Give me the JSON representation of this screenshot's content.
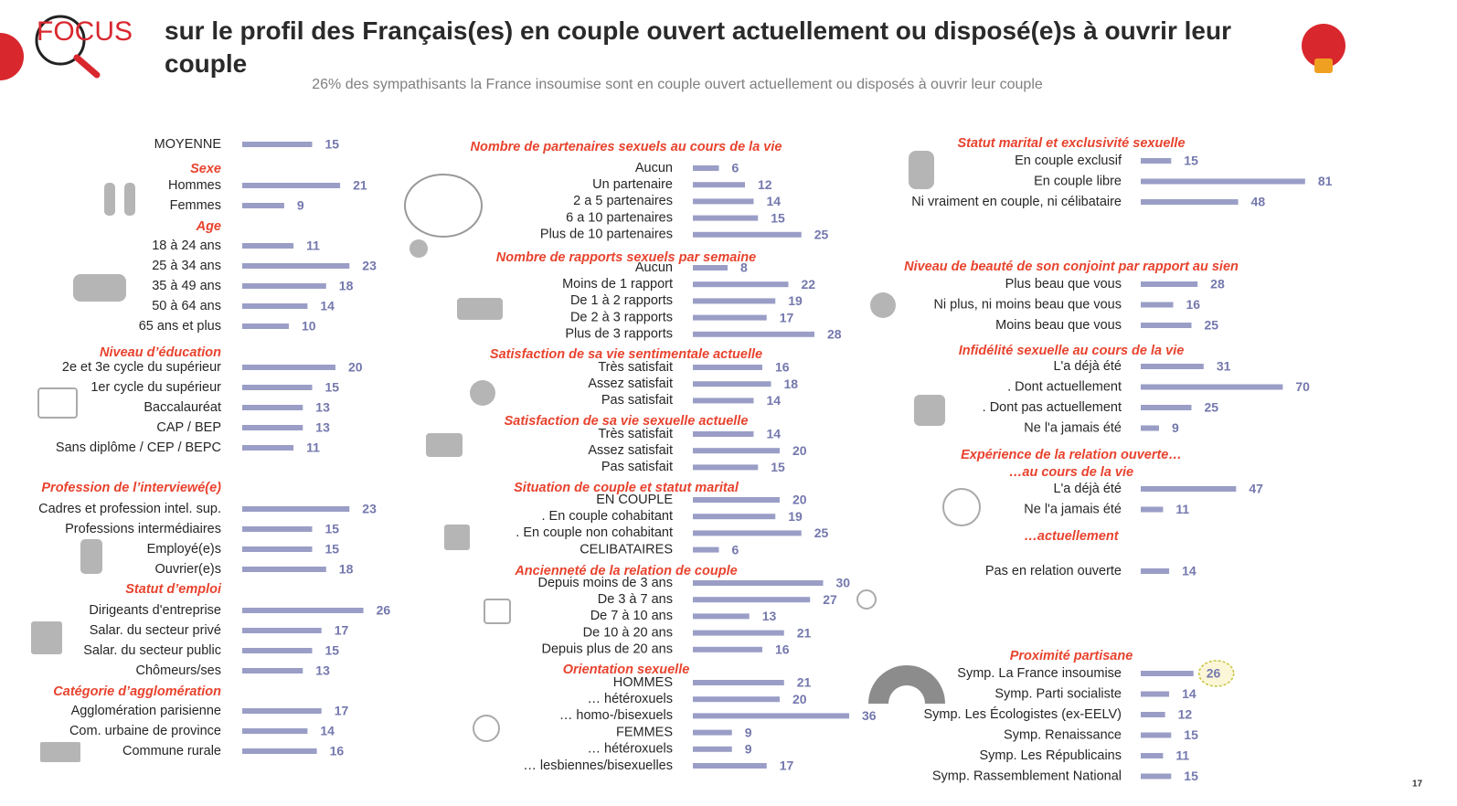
{
  "header": {
    "logo_text": "FOCUS",
    "title": "sur le profil des Français(es) en couple ouvert actuellement ou disposé(e)s à ouvrir leur couple",
    "subtitle": "26% des sympathisants la France insoumise sont en couple ouvert actuellement ou disposés à ouvrir leur couple",
    "page_number": "17"
  },
  "columns": [
    {
      "sections": [
        {
          "rows": [
            {
              "label": "MOYENNE",
              "value": 15
            }
          ]
        },
        {
          "heading": "Sexe",
          "rows": [
            {
              "label": "Hommes",
              "value": 21
            },
            {
              "label": "Femmes",
              "value": 9
            }
          ]
        },
        {
          "heading": "Age",
          "rows": [
            {
              "label": "18 à 24 ans",
              "value": 11
            },
            {
              "label": "25 à 34 ans",
              "value": 23
            },
            {
              "label": "35 à 49 ans",
              "value": 18
            },
            {
              "label": "50 à 64 ans",
              "value": 14
            },
            {
              "label": "65 ans et plus",
              "value": 10
            }
          ]
        },
        {
          "heading": "Niveau d’éducation",
          "rows": [
            {
              "label": "2e et 3e cycle du supérieur",
              "value": 20
            },
            {
              "label": "1er cycle du supérieur",
              "value": 15
            },
            {
              "label": "Baccalauréat",
              "value": 13
            },
            {
              "label": "CAP / BEP",
              "value": 13
            },
            {
              "label": "Sans diplôme / CEP / BEPC",
              "value": 11
            }
          ]
        },
        {
          "heading": "Profession de l’interviewé(e)",
          "rows": [
            {
              "label": "Cadres et profession intel. sup.",
              "value": 23
            },
            {
              "label": "Professions intermédiaires",
              "value": 15
            },
            {
              "label": "Employé(e)s",
              "value": 15
            },
            {
              "label": "Ouvrier(e)s",
              "value": 18
            }
          ]
        },
        {
          "heading": "Statut d’emploi",
          "rows": [
            {
              "label": "Dirigeants d'entreprise",
              "value": 26
            },
            {
              "label": "Salar. du secteur privé",
              "value": 17
            },
            {
              "label": "Salar. du secteur public",
              "value": 15
            },
            {
              "label": "Chômeurs/ses",
              "value": 13
            }
          ]
        },
        {
          "heading": "Catégorie d’agglomération",
          "rows": [
            {
              "label": "Agglomération parisienne",
              "value": 17
            },
            {
              "label": "Com. urbaine de province",
              "value": 14
            },
            {
              "label": "Commune rurale",
              "value": 16
            }
          ]
        }
      ]
    },
    {
      "sections": [
        {
          "heading": "Nombre de partenaires sexuels au cours de la vie",
          "rows": [
            {
              "label": "Aucun",
              "value": 6
            },
            {
              "label": "Un partenaire",
              "value": 12
            },
            {
              "label": "2 a 5 partenaires",
              "value": 14
            },
            {
              "label": "6 a 10 partenaires",
              "value": 15
            },
            {
              "label": "Plus de 10 partenaires",
              "value": 25
            }
          ]
        },
        {
          "heading": "Nombre de rapports sexuels par semaine",
          "rows": [
            {
              "label": "Aucun",
              "value": 8
            },
            {
              "label": "Moins de 1 rapport",
              "value": 22
            },
            {
              "label": "De 1 à 2 rapports",
              "value": 19
            },
            {
              "label": "De 2 à 3 rapports",
              "value": 17
            },
            {
              "label": "Plus de 3 rapports",
              "value": 28
            }
          ]
        },
        {
          "heading": "Satisfaction de sa vie sentimentale actuelle",
          "rows": [
            {
              "label": "Très satisfait",
              "value": 16
            },
            {
              "label": "Assez satisfait",
              "value": 18
            },
            {
              "label": "Pas satisfait",
              "value": 14
            }
          ]
        },
        {
          "heading": "Satisfaction de sa vie sexuelle actuelle",
          "rows": [
            {
              "label": "Très satisfait",
              "value": 14
            },
            {
              "label": "Assez satisfait",
              "value": 20
            },
            {
              "label": "Pas satisfait",
              "value": 15
            }
          ]
        },
        {
          "heading": "Situation de couple et statut marital",
          "rows": [
            {
              "label": "EN COUPLE",
              "value": 20
            },
            {
              "label": ". En couple cohabitant",
              "value": 19
            },
            {
              "label": ". En couple non cohabitant",
              "value": 25
            },
            {
              "label": "CELIBATAIRES",
              "value": 6
            }
          ]
        },
        {
          "heading": "Ancienneté de la relation de couple",
          "rows": [
            {
              "label": "Depuis moins de 3 ans",
              "value": 30
            },
            {
              "label": "De 3 à 7 ans",
              "value": 27
            },
            {
              "label": "De 7 à 10 ans",
              "value": 13
            },
            {
              "label": "De 10 à 20 ans",
              "value": 21
            },
            {
              "label": "Depuis plus de 20 ans",
              "value": 16
            }
          ]
        },
        {
          "heading": "Orientation sexuelle",
          "rows": [
            {
              "label": "HOMMES",
              "value": 21
            },
            {
              "label": "… hétéroxuels",
              "value": 20
            },
            {
              "label": "… homo-/bisexuels",
              "value": 36
            },
            {
              "label": "FEMMES",
              "value": 9
            },
            {
              "label": "… hétéroxuels",
              "value": 9
            },
            {
              "label": "… lesbiennes/bisexuelles",
              "value": 17
            }
          ]
        }
      ]
    },
    {
      "sections": [
        {
          "heading": "Statut marital et exclusivité sexuelle",
          "rows": [
            {
              "label": "En couple exclusif",
              "value": 15
            },
            {
              "label": "En couple libre",
              "value": 81
            },
            {
              "label": "Ni vraiment en couple, ni célibataire",
              "value": 48
            }
          ]
        },
        {
          "heading": "Niveau de beauté de son conjoint par rapport au sien",
          "rows": [
            {
              "label": "Plus beau que vous",
              "value": 28
            },
            {
              "label": "Ni plus, ni moins beau que vous",
              "value": 16
            },
            {
              "label": "Moins beau que vous",
              "value": 25
            }
          ]
        },
        {
          "heading": "Infidélité sexuelle au cours de la vie",
          "rows": [
            {
              "label": "L'a déjà été",
              "value": 31
            },
            {
              "label": ". Dont actuellement",
              "value": 70
            },
            {
              "label": ". Dont pas actuellement",
              "value": 25
            },
            {
              "label": "Ne l'a jamais été",
              "value": 9
            }
          ]
        },
        {
          "heading": "Expérience de la relation ouverte…",
          "subheading": "…au cours de la vie",
          "rows": [
            {
              "label": "L'a déjà été",
              "value": 47
            },
            {
              "label": "Ne l'a jamais été",
              "value": 11
            }
          ]
        },
        {
          "heading": "…actuellement",
          "rows": [
            {
              "label": "Pas en relation ouverte",
              "value": 14
            }
          ]
        },
        {
          "heading": "Proximité partisane",
          "rows": [
            {
              "label": "Symp. La France insoumise",
              "value": 26,
              "highlight": true
            },
            {
              "label": "Symp. Parti socialiste",
              "value": 14
            },
            {
              "label": "Symp. Les Écologistes (ex-EELV)",
              "value": 12
            },
            {
              "label": "Symp. Renaissance",
              "value": 15
            },
            {
              "label": "Symp. Les Républicains",
              "value": 11
            },
            {
              "label": "Symp. Rassemblement National",
              "value": 15
            }
          ]
        }
      ]
    }
  ]
}
